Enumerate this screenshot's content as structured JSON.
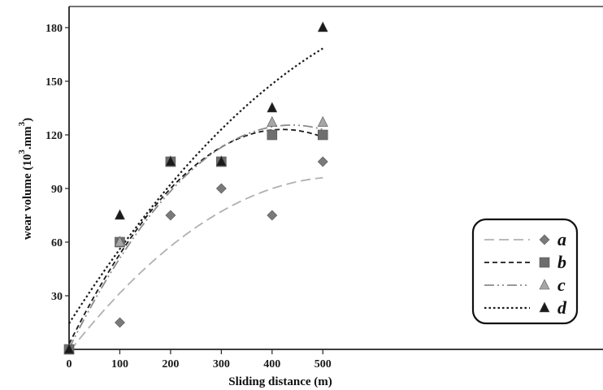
{
  "chart_data": {
    "type": "scatter",
    "xlabel": "Sliding distance (m)",
    "ylabel": "wear volume (10",
    "ylabel_exp": "3",
    "ylabel_unit": ".mm",
    "ylabel_unit_exp": "3",
    "ylabel_close": ")",
    "xlim": [
      0,
      520
    ],
    "ylim": [
      0,
      195
    ],
    "x_ticks": [
      0,
      100,
      200,
      300,
      400,
      500
    ],
    "y_ticks": [
      30,
      60,
      90,
      120,
      150,
      180
    ],
    "grid": false,
    "legend_position": "bottom-right",
    "series": [
      {
        "name": "a",
        "marker": "diamond",
        "color": "#7a7a7a",
        "trend_color": "#b0b0b0",
        "trend_style": "long-dash",
        "x": [
          0,
          100,
          200,
          300,
          400,
          500
        ],
        "values": [
          0,
          15,
          75,
          90,
          75,
          105
        ],
        "trend_coeffs": [
          -1.5,
          0.3629,
          -0.0003357
        ]
      },
      {
        "name": "b",
        "marker": "square",
        "color": "#6e6e6e",
        "trend_color": "#1a1a1a",
        "trend_style": "dash",
        "x": [
          0,
          100,
          200,
          300,
          400,
          500
        ],
        "values": [
          0,
          60,
          105,
          105,
          120,
          120
        ],
        "trend_coeffs": [
          3,
          0.5708,
          -0.0006786
        ]
      },
      {
        "name": "c",
        "marker": "triangle",
        "color": "#a6a6a6",
        "trend_color": "#8a8a8a",
        "trend_style": "dash-dot-dot",
        "x": [
          0,
          100,
          200,
          300,
          400,
          500
        ],
        "values": [
          0,
          60,
          105,
          105,
          127,
          127
        ],
        "trend_coeffs": [
          0.5,
          0.57,
          -0.00065
        ]
      },
      {
        "name": "d",
        "marker": "triangle",
        "color": "#1a1a1a",
        "trend_color": "#1a1a1a",
        "trend_style": "dot",
        "x": [
          0,
          100,
          200,
          300,
          400,
          500
        ],
        "values": [
          0,
          75,
          105,
          105,
          135,
          180
        ],
        "trend_coeffs": [
          14.5,
          0.4434,
          -0.0002714
        ]
      }
    ]
  }
}
